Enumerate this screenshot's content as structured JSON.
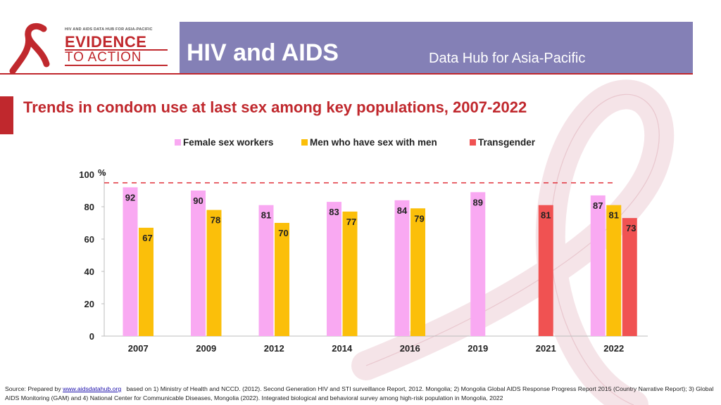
{
  "header": {
    "logo": {
      "tagline": "HIV AND AIDS DATA HUB FOR ASIA-PACIFIC",
      "line1": "EVIDENCE",
      "line2": "TO ACTION"
    },
    "title": "HIV and AIDS",
    "subtitle": "Data Hub for Asia-Pacific"
  },
  "colors": {
    "banner": "#8480b6",
    "accent_red": "#c0282d",
    "female_sex_workers": "#f9a9f2",
    "msm": "#fbbf0a",
    "transgender": "#f05252",
    "target_line": "#e0303a"
  },
  "chart_data": {
    "type": "bar",
    "title": "Trends in condom use at last sex among key populations, 2007-2022",
    "ylabel": "%",
    "ylim": [
      0,
      100
    ],
    "yticks": [
      0,
      20,
      40,
      60,
      80,
      100
    ],
    "reference_line": 100,
    "legend_position": "top-center",
    "categories": [
      "2007",
      "2009",
      "2012",
      "2014",
      "2016",
      "2019",
      "2021",
      "2022"
    ],
    "series": [
      {
        "name": "Female sex workers",
        "color": "#f9a9f2",
        "values": [
          92,
          90,
          81,
          83,
          84,
          89,
          null,
          87
        ],
        "labels": [
          "92",
          "90",
          "81",
          "83",
          "84",
          "89",
          null,
          "87"
        ]
      },
      {
        "name": "Men who have sex with men",
        "color": "#fbbf0a",
        "values": [
          67,
          78,
          70,
          77,
          79,
          null,
          null,
          81
        ],
        "labels": [
          "67",
          "78",
          "70",
          "77",
          "79",
          null,
          null,
          "81"
        ]
      },
      {
        "name": "Transgender",
        "color": "#f05252",
        "values": [
          null,
          null,
          null,
          null,
          null,
          null,
          81,
          73
        ],
        "labels": [
          null,
          null,
          null,
          null,
          null,
          null,
          "81",
          "73"
        ]
      }
    ]
  },
  "source": {
    "prefix": "Source: Prepared by ",
    "link_text": "www.aidsdatahub.org",
    "text": "based on 1) Ministry of Health and NCCD. (2012). Second Generation HIV and STI surveillance Report, 2012. Mongolia; 2) Mongolia Global AIDS Response Progress Report 2015 (Country Narrative Report); 3) Global AIDS Monitoring (GAM) and 4) National Center for Communicable Diseases, Mongolia (2022). Integrated biological and behavioral survey among high-risk population in Mongolia, 2022"
  }
}
